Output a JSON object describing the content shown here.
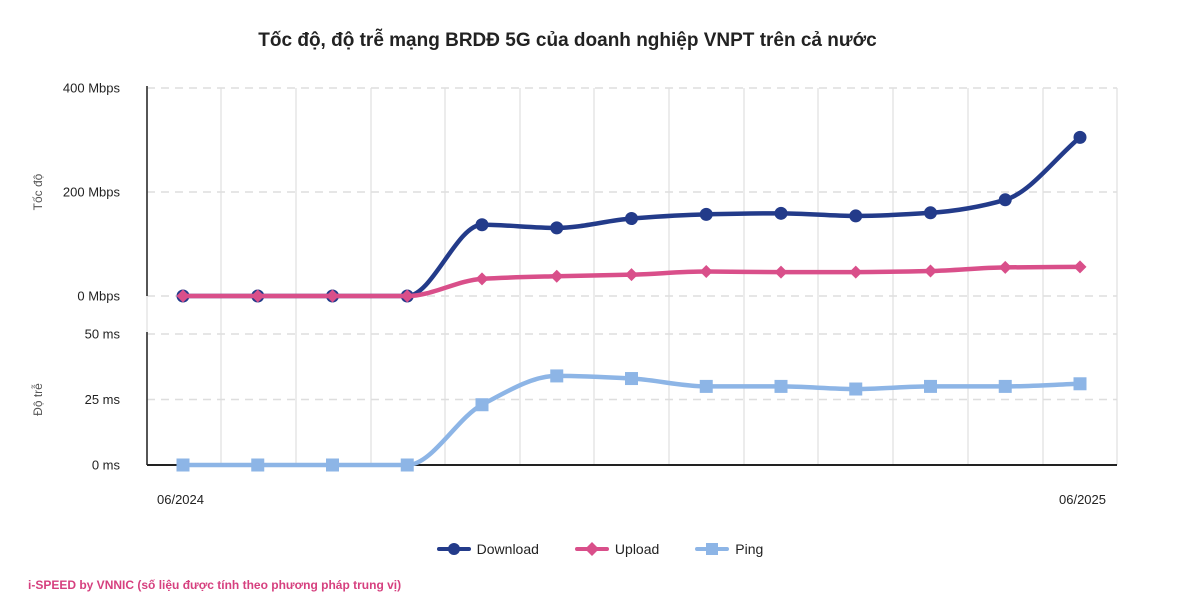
{
  "title": "Tốc độ, độ trễ mạng BRDĐ 5G của doanh nghiệp VNPT trên cả nước",
  "footer": "i-SPEED by VNNIC (số liệu được tính theo phương pháp trung vị)",
  "chart_data": [
    {
      "type": "line",
      "ylabel": "Tốc độ",
      "ylim": [
        0,
        400
      ],
      "yticks": [
        {
          "value": 0,
          "label": "0 Mbps"
        },
        {
          "value": 200,
          "label": "200 Mbps"
        },
        {
          "value": 400,
          "label": "400 Mbps"
        }
      ],
      "x": [
        "06/2024",
        "07/2024",
        "08/2024",
        "09/2024",
        "10/2024",
        "11/2024",
        "12/2024",
        "01/2025",
        "02/2025",
        "03/2025",
        "04/2025",
        "05/2025",
        "06/2025"
      ],
      "x_tick_labels": [
        "06/2024",
        "06/2025"
      ],
      "series": [
        {
          "name": "Download",
          "color": "#233b8a",
          "marker": "circle",
          "values": [
            0,
            0,
            0,
            0,
            137,
            131,
            149,
            157,
            159,
            154,
            160,
            185,
            305
          ]
        },
        {
          "name": "Upload",
          "color": "#d94f8a",
          "marker": "diamond",
          "values": [
            0,
            0,
            0,
            0,
            33,
            38,
            41,
            47,
            46,
            46,
            48,
            55,
            56
          ]
        }
      ],
      "grid": true
    },
    {
      "type": "line",
      "ylabel": "Độ trễ",
      "ylim": [
        0,
        50
      ],
      "yticks": [
        {
          "value": 0,
          "label": "0 ms"
        },
        {
          "value": 25,
          "label": "25 ms"
        },
        {
          "value": 50,
          "label": "50 ms"
        }
      ],
      "x": [
        "06/2024",
        "07/2024",
        "08/2024",
        "09/2024",
        "10/2024",
        "11/2024",
        "12/2024",
        "01/2025",
        "02/2025",
        "03/2025",
        "04/2025",
        "05/2025",
        "06/2025"
      ],
      "x_tick_labels": [
        "06/2024",
        "06/2025"
      ],
      "series": [
        {
          "name": "Ping",
          "color": "#8db5e6",
          "marker": "square",
          "values": [
            0,
            0,
            0,
            0,
            23,
            34,
            33,
            30,
            30,
            29,
            30,
            30,
            31
          ]
        }
      ],
      "grid": true
    }
  ],
  "legend": [
    {
      "label": "Download",
      "color": "#233b8a",
      "marker": "circle"
    },
    {
      "label": "Upload",
      "color": "#d94f8a",
      "marker": "diamond"
    },
    {
      "label": "Ping",
      "color": "#8db5e6",
      "marker": "square"
    }
  ]
}
